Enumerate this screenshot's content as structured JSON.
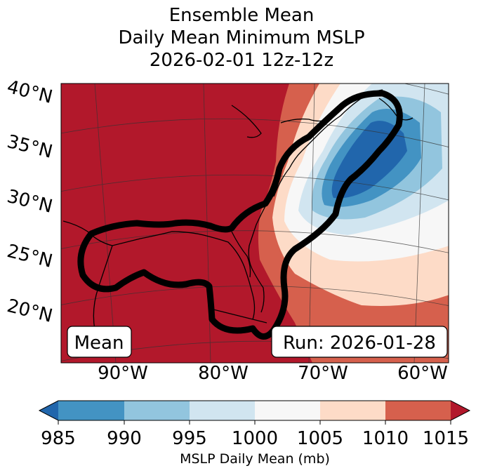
{
  "title_lines": [
    "Ensemble Mean",
    "Daily Mean Minimum MSLP",
    "2026-02-01 12z-12z"
  ],
  "lat_labels": [
    "40°N",
    "35°N",
    "30°N",
    "25°N",
    "20°N"
  ],
  "lon_labels": [
    "90°W",
    "80°W",
    "70°W",
    "60°W"
  ],
  "mean_label": "Mean",
  "run_label": "Run: 2026-01-28",
  "colorbar": {
    "title": "MSLP Daily Mean (mb)",
    "ticks": [
      "985",
      "990",
      "995",
      "1000",
      "1005",
      "1010",
      "1015"
    ],
    "colors": [
      "#2166ac",
      "#4393c3",
      "#92c5de",
      "#d1e5f0",
      "#f7f7f7",
      "#fddbc7",
      "#d6604d",
      "#b2182b"
    ]
  },
  "cone_color": "#000000",
  "land_color": "#b2182b"
}
